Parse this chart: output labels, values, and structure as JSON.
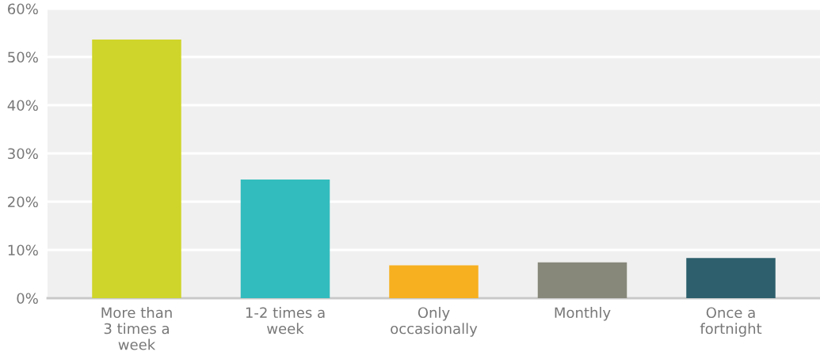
{
  "chart_data": {
    "type": "bar",
    "categories": [
      "More than\n3 times a\nweek",
      "1-2 times a\nweek",
      "Only\noccasionally",
      "Monthly",
      "Once a\nfortnight"
    ],
    "values": [
      53.6,
      24.6,
      6.8,
      7.4,
      8.3
    ],
    "colors": [
      "#cfd52a",
      "#33bcbe",
      "#f7b020",
      "#87887a",
      "#2d5f6c"
    ],
    "ylim": [
      0,
      60
    ],
    "yticks": [
      {
        "value": 0,
        "label": "0%"
      },
      {
        "value": 10,
        "label": "10%"
      },
      {
        "value": 20,
        "label": "20%"
      },
      {
        "value": 30,
        "label": "30%"
      },
      {
        "value": 40,
        "label": "40%"
      },
      {
        "value": 50,
        "label": "50%"
      },
      {
        "value": 60,
        "label": "60%"
      }
    ],
    "grid": "y"
  }
}
